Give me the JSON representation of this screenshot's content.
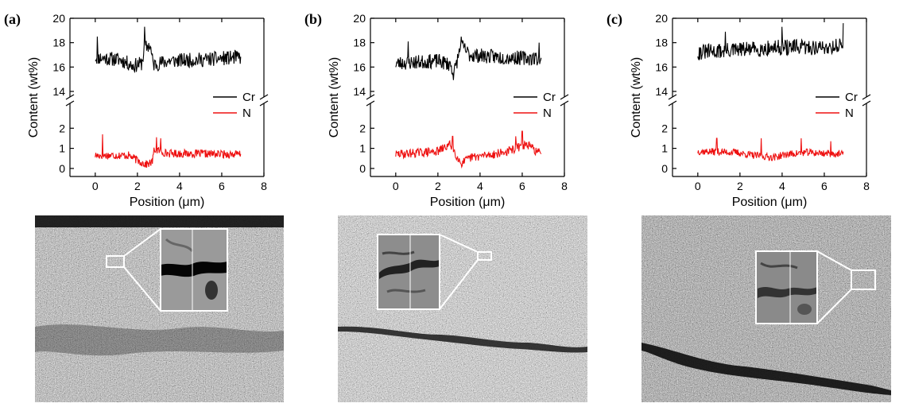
{
  "panels": [
    {
      "label": "(a)"
    },
    {
      "label": "(b)"
    },
    {
      "label": "(c)"
    }
  ],
  "colors": {
    "cr": "#000000",
    "n": "#ee1111"
  },
  "chart_data": [
    {
      "type": "line",
      "ylabel": "Content (wt%)",
      "xlabel": "Position (μm)",
      "x_ticks": [
        "0",
        "2",
        "4",
        "6",
        "8"
      ],
      "y_ticks_upper": [
        "14",
        "16",
        "18",
        "20"
      ],
      "y_ticks_lower": [
        "0",
        "1",
        "2"
      ],
      "xlim": [
        -1.2,
        8
      ],
      "ylim_upper": [
        14,
        20
      ],
      "ylim_lower": [
        -0.4,
        3
      ],
      "axis_break": true,
      "legend_position": "right, between the two axis segments",
      "x_range": [
        0,
        6.9
      ],
      "series": [
        {
          "name": "Cr",
          "color": "#000000",
          "profile": [
            [
              0,
              16.8
            ],
            [
              1.2,
              16.6
            ],
            [
              1.8,
              16.1
            ],
            [
              2.2,
              16.3
            ],
            [
              2.35,
              17.6
            ],
            [
              2.6,
              17.8
            ],
            [
              2.75,
              16.2
            ],
            [
              3.5,
              16.5
            ],
            [
              5,
              16.6
            ],
            [
              6.9,
              16.8
            ]
          ],
          "noise": 0.6,
          "spikes": [
            [
              2.35,
              19.3
            ],
            [
              0.1,
              18.5
            ]
          ],
          "seed": 11
        },
        {
          "name": "N",
          "color": "#ee1111",
          "profile": [
            [
              0,
              0.65
            ],
            [
              1.6,
              0.65
            ],
            [
              2.0,
              0.4
            ],
            [
              2.4,
              0.2
            ],
            [
              2.7,
              0.3
            ],
            [
              2.8,
              0.95
            ],
            [
              3.4,
              0.75
            ],
            [
              6.9,
              0.7
            ]
          ],
          "noise": 0.2,
          "spikes": [
            [
              0.35,
              1.7
            ],
            [
              2.9,
              1.55
            ],
            [
              3.1,
              1.5
            ]
          ],
          "seed": 17
        }
      ]
    },
    {
      "type": "line",
      "ylabel": "Content (wt%)",
      "xlabel": "Position (μm)",
      "x_ticks": [
        "0",
        "2",
        "4",
        "6",
        "8"
      ],
      "y_ticks_upper": [
        "14",
        "16",
        "18",
        "20"
      ],
      "y_ticks_lower": [
        "0",
        "1",
        "2"
      ],
      "xlim": [
        -1.2,
        8
      ],
      "ylim_upper": [
        14,
        20
      ],
      "ylim_lower": [
        -0.4,
        3
      ],
      "axis_break": true,
      "legend_position": "right, between the two axis segments",
      "x_range": [
        0,
        6.9
      ],
      "series": [
        {
          "name": "Cr",
          "color": "#000000",
          "profile": [
            [
              0,
              16.3
            ],
            [
              2.0,
              16.5
            ],
            [
              2.6,
              16.2
            ],
            [
              2.75,
              15.4
            ],
            [
              3.1,
              17.8
            ],
            [
              3.5,
              17.0
            ],
            [
              5,
              16.8
            ],
            [
              6.9,
              16.7
            ]
          ],
          "noise": 0.6,
          "spikes": [
            [
              3.1,
              18.5
            ],
            [
              0.6,
              18.1
            ],
            [
              6.8,
              18.0
            ]
          ],
          "seed": 23
        },
        {
          "name": "N",
          "color": "#ee1111",
          "profile": [
            [
              0,
              0.7
            ],
            [
              2.0,
              0.85
            ],
            [
              2.6,
              1.2
            ],
            [
              2.8,
              0.8
            ],
            [
              3.1,
              0.25
            ],
            [
              3.6,
              0.55
            ],
            [
              5.2,
              0.8
            ],
            [
              6.2,
              1.2
            ],
            [
              6.9,
              0.7
            ]
          ],
          "noise": 0.22,
          "spikes": [
            [
              2.7,
              1.6
            ],
            [
              6.0,
              1.85
            ],
            [
              5.7,
              1.6
            ]
          ],
          "seed": 29
        }
      ]
    },
    {
      "type": "line",
      "ylabel": "Content (wt%)",
      "xlabel": "Position (μm)",
      "x_ticks": [
        "0",
        "2",
        "4",
        "6",
        "8"
      ],
      "y_ticks_upper": [
        "14",
        "16",
        "18",
        "20"
      ],
      "y_ticks_lower": [
        "0",
        "1",
        "2"
      ],
      "xlim": [
        -1.2,
        8
      ],
      "ylim_upper": [
        14,
        20
      ],
      "ylim_lower": [
        -0.4,
        3
      ],
      "axis_break": true,
      "legend_position": "right, between the two axis segments",
      "x_range": [
        0,
        6.9
      ],
      "series": [
        {
          "name": "Cr",
          "color": "#000000",
          "profile": [
            [
              0,
              17.2
            ],
            [
              2.0,
              17.4
            ],
            [
              4.0,
              17.6
            ],
            [
              6.0,
              17.6
            ],
            [
              6.9,
              17.8
            ]
          ],
          "noise": 0.65,
          "spikes": [
            [
              6.9,
              19.6
            ],
            [
              4.0,
              19.3
            ],
            [
              1.3,
              18.9
            ]
          ],
          "seed": 31
        },
        {
          "name": "N",
          "color": "#ee1111",
          "profile": [
            [
              0,
              0.85
            ],
            [
              1.8,
              0.8
            ],
            [
              2.6,
              0.65
            ],
            [
              3.6,
              0.55
            ],
            [
              4.2,
              0.7
            ],
            [
              5.2,
              0.8
            ],
            [
              6.9,
              0.7
            ]
          ],
          "noise": 0.18,
          "spikes": [
            [
              0.9,
              1.5
            ],
            [
              3.0,
              1.5
            ],
            [
              4.9,
              1.5
            ],
            [
              6.3,
              1.35
            ]
          ],
          "seed": 37
        }
      ]
    }
  ]
}
